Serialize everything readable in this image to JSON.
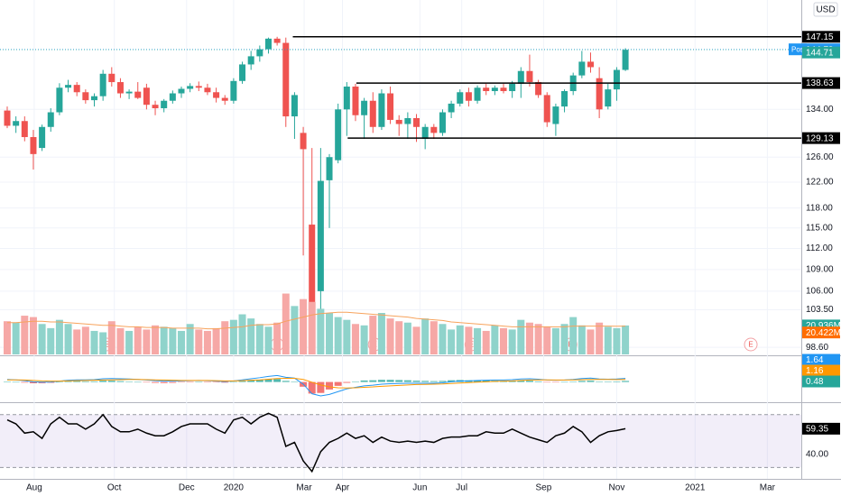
{
  "chart_data": [
    {
      "type": "candlestick",
      "currency": "USD",
      "log_scale": true,
      "grid": true,
      "up_color": "#26a69a",
      "down_color": "#ef5350",
      "open": [
        133.8,
        131.2,
        132.0,
        129.3,
        127.5,
        131.0,
        133.5,
        137.8,
        138.3,
        137.0,
        135.6,
        136.3,
        140.3,
        138.8,
        136.8,
        137.1,
        137.8,
        134.8,
        134.2,
        135.5,
        136.8,
        137.6,
        138.1,
        137.8,
        137.0,
        136.0,
        135.5,
        139.0,
        142.0,
        143.5,
        144.8,
        146.8,
        146.0,
        132.8,
        130.0,
        115.5,
        106.0,
        122.3,
        125.5,
        134.0,
        138.0,
        133.0,
        135.5,
        131.0,
        136.8,
        132.2,
        131.5,
        132.5,
        129.0,
        131.0,
        130.0,
        133.5,
        135.0,
        137.0,
        135.5,
        137.8,
        137.2,
        137.8,
        137.2,
        138.5,
        140.8,
        138.8,
        136.5,
        131.5,
        134.5,
        137.2,
        140.0,
        142.5,
        139.5,
        134.5,
        137.5,
        141.0
      ],
      "high": [
        134.5,
        132.8,
        132.8,
        130.5,
        131.4,
        134.2,
        138.6,
        139.2,
        138.8,
        137.5,
        136.8,
        141.0,
        141.5,
        139.5,
        137.5,
        138.8,
        138.5,
        135.5,
        135.8,
        137.3,
        138.0,
        138.6,
        138.9,
        138.5,
        137.8,
        136.5,
        139.5,
        142.5,
        144.5,
        145.5,
        147.0,
        147.15,
        147.0,
        137.0,
        131.0,
        127.5,
        127.5,
        126.5,
        135.0,
        138.8,
        138.5,
        136.0,
        137.0,
        137.5,
        138.0,
        133.0,
        133.5,
        133.2,
        131.5,
        131.5,
        134.0,
        135.5,
        137.5,
        137.8,
        138.2,
        138.5,
        138.2,
        138.5,
        139.0,
        141.5,
        143.8,
        139.2,
        137.0,
        135.0,
        137.5,
        140.5,
        144.5,
        144.2,
        141.5,
        138.5,
        141.5,
        145.0
      ],
      "low": [
        130.8,
        130.0,
        128.6,
        124.0,
        127.0,
        130.2,
        133.0,
        137.0,
        136.3,
        135.0,
        134.5,
        135.5,
        138.0,
        136.0,
        135.8,
        135.8,
        134.0,
        133.0,
        133.5,
        135.0,
        136.0,
        137.0,
        137.2,
        136.5,
        135.2,
        134.8,
        135.0,
        138.5,
        141.0,
        142.5,
        144.0,
        145.5,
        131.0,
        129.0,
        111.0,
        101.8,
        103.5,
        115.0,
        125.0,
        129.5,
        132.0,
        129.0,
        130.0,
        130.5,
        131.5,
        129.5,
        129.0,
        128.5,
        127.3,
        129.0,
        129.5,
        132.5,
        134.5,
        134.5,
        135.0,
        136.5,
        136.5,
        136.8,
        136.0,
        136.0,
        138.0,
        136.0,
        131.0,
        129.5,
        133.5,
        136.5,
        139.5,
        140.5,
        132.5,
        134.0,
        135.5,
        140.8
      ],
      "close": [
        131.2,
        132.0,
        129.3,
        126.5,
        131.0,
        133.5,
        137.8,
        138.3,
        137.0,
        135.6,
        136.3,
        140.3,
        138.8,
        136.8,
        137.1,
        136.0,
        134.8,
        134.2,
        135.5,
        136.8,
        137.6,
        138.1,
        137.8,
        137.0,
        136.0,
        135.5,
        139.0,
        142.0,
        143.5,
        144.8,
        146.8,
        146.0,
        132.8,
        136.5,
        127.3,
        104.5,
        122.2,
        126.0,
        134.0,
        138.0,
        133.0,
        135.5,
        131.0,
        136.8,
        132.2,
        131.5,
        132.5,
        131.0,
        131.0,
        130.0,
        133.5,
        135.0,
        137.0,
        135.5,
        137.8,
        137.2,
        137.8,
        137.2,
        138.5,
        140.8,
        138.8,
        136.5,
        131.8,
        134.5,
        137.2,
        140.0,
        142.5,
        141.5,
        134.0,
        137.5,
        141.0,
        144.71
      ],
      "ylim": [
        97.7,
        154.3
      ],
      "yticks": [
        {
          "value": 134,
          "label": "134.00"
        },
        {
          "value": 126,
          "label": "126.00"
        },
        {
          "value": 122,
          "label": "122.00"
        },
        {
          "value": 118,
          "label": "118.00"
        },
        {
          "value": 115,
          "label": "115.00"
        },
        {
          "value": 112,
          "label": "112.00"
        },
        {
          "value": 109,
          "label": "109.00"
        },
        {
          "value": 106,
          "label": "106.00"
        },
        {
          "value": 103.5,
          "label": "103.50"
        },
        {
          "value": 98.6,
          "label": "98.60"
        }
      ],
      "xlim": [
        -0.83,
        91.2
      ],
      "xticks": [
        {
          "value": 3.1,
          "label": "Aug"
        },
        {
          "value": 12.3,
          "label": "Oct"
        },
        {
          "value": 20.6,
          "label": "Dec"
        },
        {
          "value": 26.0,
          "label": "2020"
        },
        {
          "value": 34.1,
          "label": "Mar"
        },
        {
          "value": 38.5,
          "label": "Apr"
        },
        {
          "value": 47.4,
          "label": "Jun"
        },
        {
          "value": 52.2,
          "label": "Jul"
        },
        {
          "value": 61.6,
          "label": "Sep"
        },
        {
          "value": 70.0,
          "label": "Nov"
        },
        {
          "value": 79.0,
          "label": "2021"
        },
        {
          "value": 87.3,
          "label": "Mar"
        }
      ],
      "levels": [
        {
          "value": 147.15,
          "x_start": 32.8
        },
        {
          "value": 138.63,
          "x_start": 40.1
        },
        {
          "value": 129.13,
          "x_start": 39.1
        }
      ],
      "post_market": {
        "label": "Post",
        "value": 144.79,
        "color": "#2196f3"
      },
      "earnings": {
        "label": "E",
        "x": [
          11.4,
          31.0,
          42.2,
          53.3,
          64.7,
          85.4
        ]
      }
    },
    {
      "type": "volume",
      "up_color": "#8fd3cb",
      "down_color": "#f6a8a6",
      "ma_color": "#f7a35c",
      "ylim": [
        0,
        60
      ],
      "values": [
        24,
        23,
        28,
        27,
        22,
        19,
        25,
        22,
        18,
        20,
        17,
        16,
        24,
        19,
        17,
        20,
        18,
        21,
        20,
        19,
        17,
        22,
        18,
        17,
        19,
        24,
        25,
        29,
        26,
        22,
        20,
        23,
        44,
        35,
        40,
        38,
        33,
        30,
        27,
        25,
        22,
        21,
        28,
        30,
        26,
        24,
        23,
        20,
        26,
        24,
        22,
        18,
        21,
        20,
        19,
        17,
        21,
        19,
        18,
        25,
        23,
        22,
        20,
        19,
        22,
        27,
        21,
        18,
        23,
        20,
        19,
        20.936
      ],
      "ma_values": [
        23,
        23,
        23.5,
        24,
        24,
        23.5,
        23.5,
        23,
        22.5,
        22,
        21.5,
        21,
        21,
        20.5,
        20,
        20,
        19.5,
        19.5,
        19.5,
        19,
        19,
        19,
        19,
        18.5,
        18.5,
        19,
        19.5,
        20,
        21,
        21.5,
        21.5,
        22,
        24,
        25.5,
        27,
        28.5,
        29.5,
        30,
        30.5,
        30.5,
        30,
        29.5,
        29,
        28.5,
        28,
        27.5,
        27,
        26,
        25.5,
        25,
        24.5,
        23.5,
        23,
        22.5,
        22,
        21.5,
        21,
        20.5,
        20,
        20,
        20,
        20,
        20,
        20,
        20,
        20.5,
        20.5,
        20.5,
        20.5,
        20.5,
        20.4,
        20.422
      ],
      "last_label": "20.936M",
      "ma_last_label": "20.422M"
    },
    {
      "type": "macd",
      "macd_color": "#2196f3",
      "signal_color": "#ff9800",
      "up_color": "#26a69a",
      "down_color": "#ef5350",
      "ylim": [
        -9,
        12
      ],
      "macd": [
        1.2,
        1.0,
        0.6,
        0.1,
        -0.1,
        0.0,
        0.4,
        0.8,
        1.0,
        1.0,
        1.1,
        1.5,
        1.6,
        1.5,
        1.4,
        1.2,
        0.9,
        0.6,
        0.4,
        0.4,
        0.5,
        0.6,
        0.7,
        0.6,
        0.4,
        0.2,
        0.5,
        1.0,
        1.5,
        2.0,
        2.6,
        3.0,
        2.2,
        1.8,
        -1.0,
        -5.5,
        -6.5,
        -5.8,
        -4.5,
        -3.2,
        -2.5,
        -1.8,
        -1.5,
        -1.0,
        -0.8,
        -0.7,
        -0.6,
        -0.6,
        -0.6,
        -0.6,
        -0.4,
        0.1,
        0.4,
        0.5,
        0.7,
        0.8,
        0.9,
        0.9,
        1.1,
        1.4,
        1.5,
        1.3,
        0.9,
        0.8,
        0.9,
        1.2,
        1.6,
        1.8,
        1.4,
        1.3,
        1.4,
        1.64
      ],
      "signal": [
        1.0,
        1.0,
        0.9,
        0.7,
        0.5,
        0.4,
        0.4,
        0.5,
        0.6,
        0.7,
        0.8,
        0.9,
        1.0,
        1.1,
        1.2,
        1.2,
        1.1,
        1.0,
        0.9,
        0.8,
        0.7,
        0.7,
        0.7,
        0.7,
        0.6,
        0.5,
        0.5,
        0.6,
        0.8,
        1.0,
        1.3,
        1.6,
        1.7,
        1.7,
        1.2,
        -0.1,
        -1.4,
        -2.3,
        -2.7,
        -2.8,
        -2.7,
        -2.5,
        -2.3,
        -2.0,
        -1.8,
        -1.6,
        -1.4,
        -1.2,
        -1.1,
        -1.0,
        -0.9,
        -0.7,
        -0.5,
        -0.3,
        -0.1,
        0.1,
        0.3,
        0.4,
        0.5,
        0.7,
        0.9,
        1.0,
        1.0,
        0.9,
        0.9,
        1.0,
        1.1,
        1.2,
        1.2,
        1.2,
        1.15,
        1.16
      ],
      "histogram": [
        0.2,
        0,
        -0.3,
        -0.6,
        -0.6,
        -0.4,
        0,
        0.3,
        0.4,
        0.3,
        0.3,
        0.6,
        0.6,
        0.4,
        0.2,
        0,
        -0.2,
        -0.4,
        -0.5,
        -0.4,
        -0.2,
        -0.1,
        0,
        -0.1,
        -0.2,
        -0.3,
        0,
        0.4,
        0.7,
        1.0,
        1.3,
        1.4,
        0.5,
        0.1,
        -2.2,
        -5.4,
        -5.1,
        -3.5,
        -1.8,
        -0.4,
        0.2,
        0.7,
        0.8,
        1.0,
        1.0,
        0.9,
        0.8,
        0.6,
        0.5,
        0.4,
        0.5,
        0.8,
        0.9,
        0.8,
        0.8,
        0.7,
        0.6,
        0.5,
        0.6,
        0.7,
        0.6,
        0.3,
        -0.1,
        -0.1,
        0,
        0.2,
        0.5,
        0.6,
        0.2,
        0.1,
        0.25,
        0.48
      ]
    },
    {
      "type": "rsi",
      "color": "#000000",
      "band_color": "#7e57c2",
      "ylim": [
        21.4,
        78.7
      ],
      "bands": [
        70,
        30
      ],
      "yticks": [
        {
          "value": 40,
          "label": "40.00"
        }
      ],
      "values": [
        66,
        63,
        56,
        57,
        52,
        63,
        68,
        63,
        63,
        59,
        63,
        70,
        61,
        57,
        57,
        59,
        56,
        54,
        54,
        57,
        61,
        63,
        63,
        63,
        59,
        56,
        66,
        68,
        63,
        68,
        71,
        68,
        46,
        49,
        35,
        27,
        42,
        49,
        52,
        56,
        52,
        54,
        49,
        53,
        50,
        49,
        50,
        49,
        50,
        49,
        52,
        53,
        53,
        54,
        54,
        57,
        56,
        56,
        59,
        56,
        53,
        51,
        49,
        54,
        56,
        61,
        57,
        49,
        54,
        57,
        58,
        59.35
      ]
    }
  ]
}
